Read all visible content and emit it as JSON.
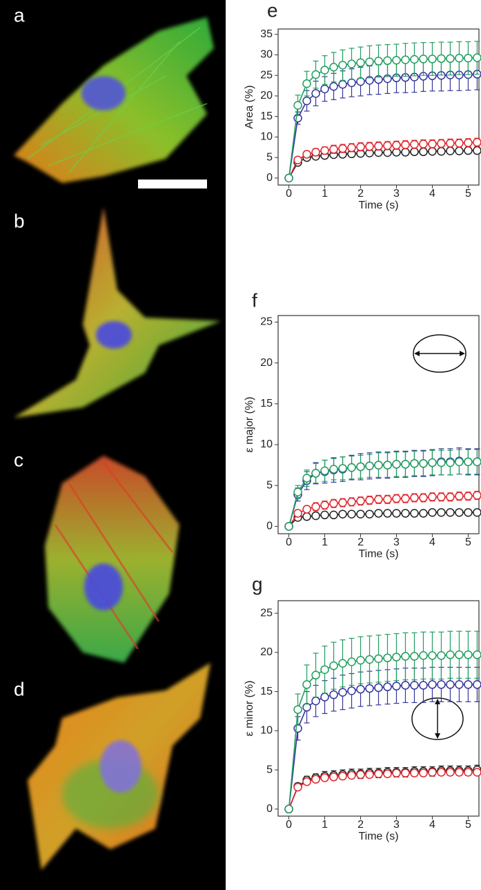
{
  "panel_labels": [
    "a",
    "b",
    "c",
    "d"
  ],
  "chart_data": [
    {
      "type": "line",
      "panel": "e",
      "ylabel": "Area (%)",
      "xlabel": "Time (s)",
      "x": [
        0,
        0.25,
        0.5,
        0.75,
        1,
        1.25,
        1.5,
        1.75,
        2,
        2.25,
        2.5,
        2.75,
        3,
        3.25,
        3.5,
        3.75,
        4,
        4.25,
        4.5,
        4.75,
        5,
        5.25
      ],
      "xlim": [
        -0.3,
        5.3
      ],
      "xticks": [
        0,
        1,
        2,
        3,
        4,
        5
      ],
      "ylim": [
        -1.7,
        36.3
      ],
      "yticks": [
        0,
        5,
        10,
        15,
        20,
        25,
        30,
        35
      ],
      "series": [
        {
          "color": "#222222",
          "values": [
            0,
            3.8,
            5,
            5.3,
            5.5,
            5.7,
            5.8,
            5.9,
            6,
            6.1,
            6.2,
            6.2,
            6.3,
            6.3,
            6.4,
            6.4,
            6.5,
            6.5,
            6.6,
            6.6,
            6.7,
            6.7
          ],
          "errors": [
            0,
            0.5,
            0.6,
            0.7,
            0.7,
            0.7,
            0.7,
            0.7,
            0.7,
            0.7,
            0.7,
            0.7,
            0.7,
            0.7,
            0.7,
            0.7,
            0.7,
            0.7,
            0.7,
            0.7,
            0.7,
            0.7
          ]
        },
        {
          "color": "#e0242b",
          "values": [
            0,
            4.4,
            5.8,
            6.3,
            6.7,
            7,
            7.2,
            7.4,
            7.6,
            7.7,
            7.8,
            7.9,
            8,
            8.1,
            8.2,
            8.3,
            8.3,
            8.4,
            8.5,
            8.5,
            8.6,
            8.7
          ],
          "errors": [
            0,
            0.5,
            0.8,
            0.9,
            0.9,
            1,
            1,
            1,
            1,
            1,
            1,
            1,
            1,
            1,
            1,
            1,
            1,
            1,
            1,
            1,
            1,
            1
          ]
        },
        {
          "color": "#33359a",
          "values": [
            0,
            14.6,
            18.8,
            20.6,
            21.7,
            22.3,
            22.8,
            23.2,
            23.5,
            23.8,
            24,
            24.2,
            24.4,
            24.5,
            24.6,
            24.8,
            24.9,
            25,
            25.1,
            25.1,
            25.2,
            25.3
          ],
          "errors": [
            0,
            1.5,
            2.5,
            3,
            3,
            3.2,
            3.3,
            3.4,
            3.5,
            3.5,
            3.6,
            3.6,
            3.6,
            3.7,
            3.7,
            3.7,
            3.7,
            3.8,
            3.8,
            3.8,
            3.8,
            3.8
          ]
        },
        {
          "color": "#1f9e5e",
          "values": [
            0,
            17.7,
            23,
            25.2,
            26.3,
            27,
            27.5,
            27.8,
            28.1,
            28.3,
            28.5,
            28.6,
            28.7,
            28.8,
            28.9,
            29,
            29,
            29.1,
            29.1,
            29.2,
            29.2,
            29.3
          ],
          "errors": [
            0,
            2.5,
            3,
            3.3,
            3.5,
            3.6,
            3.7,
            3.8,
            3.8,
            3.9,
            3.9,
            3.9,
            3.9,
            4,
            4,
            4,
            4,
            4,
            4,
            4,
            4,
            4
          ]
        }
      ]
    },
    {
      "type": "line",
      "panel": "f",
      "ylabel": "ε major (%)",
      "xlabel": "Time (s)",
      "x": [
        0,
        0.25,
        0.5,
        0.75,
        1,
        1.25,
        1.5,
        1.75,
        2,
        2.25,
        2.5,
        2.75,
        3,
        3.25,
        3.5,
        3.75,
        4,
        4.25,
        4.5,
        4.75,
        5,
        5.25
      ],
      "xlim": [
        -0.3,
        5.3
      ],
      "xticks": [
        0,
        1,
        2,
        3,
        4,
        5
      ],
      "ylim": [
        -0.9,
        25.8
      ],
      "yticks": [
        0,
        5,
        10,
        15,
        20,
        25
      ],
      "series": [
        {
          "color": "#222222",
          "values": [
            0,
            1.1,
            1.2,
            1.3,
            1.4,
            1.4,
            1.5,
            1.5,
            1.5,
            1.5,
            1.6,
            1.6,
            1.6,
            1.6,
            1.6,
            1.6,
            1.7,
            1.7,
            1.7,
            1.7,
            1.7,
            1.7
          ],
          "errors": [
            0,
            0.3,
            0.3,
            0.3,
            0.3,
            0.3,
            0.3,
            0.3,
            0.3,
            0.3,
            0.3,
            0.3,
            0.3,
            0.3,
            0.3,
            0.3,
            0.3,
            0.3,
            0.3,
            0.3,
            0.3,
            0.3
          ]
        },
        {
          "color": "#e0242b",
          "values": [
            0,
            1.6,
            2.1,
            2.4,
            2.6,
            2.8,
            2.9,
            3,
            3.1,
            3.2,
            3.3,
            3.3,
            3.4,
            3.4,
            3.5,
            3.5,
            3.6,
            3.6,
            3.6,
            3.7,
            3.7,
            3.8
          ],
          "errors": [
            0,
            0.4,
            0.4,
            0.5,
            0.5,
            0.5,
            0.5,
            0.5,
            0.5,
            0.5,
            0.5,
            0.5,
            0.5,
            0.5,
            0.5,
            0.5,
            0.5,
            0.5,
            0.5,
            0.5,
            0.5,
            0.5
          ]
        },
        {
          "color": "#33359a",
          "values": [
            0,
            3.9,
            5.6,
            6.5,
            6.7,
            6.9,
            7,
            7.2,
            7.3,
            7.4,
            7.5,
            7.5,
            7.6,
            7.6,
            7.7,
            7.7,
            7.8,
            7.9,
            7.9,
            8,
            7.9,
            7.9
          ],
          "errors": [
            0,
            0.8,
            1.1,
            1.3,
            1.4,
            1.5,
            1.5,
            1.5,
            1.6,
            1.6,
            1.6,
            1.6,
            1.6,
            1.6,
            1.6,
            1.6,
            1.6,
            1.6,
            1.6,
            1.6,
            1.6,
            1.6
          ]
        },
        {
          "color": "#1f9e5e",
          "values": [
            0,
            4.2,
            5.9,
            6.5,
            6.8,
            7,
            7.1,
            7.2,
            7.3,
            7.4,
            7.5,
            7.5,
            7.6,
            7.6,
            7.7,
            7.7,
            7.8,
            7.8,
            7.8,
            7.9,
            7.9,
            7.9
          ],
          "errors": [
            0,
            0.8,
            1,
            1.2,
            1.3,
            1.3,
            1.4,
            1.4,
            1.4,
            1.4,
            1.5,
            1.5,
            1.5,
            1.5,
            1.5,
            1.5,
            1.5,
            1.5,
            1.5,
            1.5,
            1.5,
            1.5
          ]
        }
      ]
    },
    {
      "type": "line",
      "panel": "g",
      "ylabel": "ε minor (%)",
      "xlabel": "Time (s)",
      "x": [
        0,
        0.25,
        0.5,
        0.75,
        1,
        1.25,
        1.5,
        1.75,
        2,
        2.25,
        2.5,
        2.75,
        3,
        3.25,
        3.5,
        3.75,
        4,
        4.25,
        4.5,
        4.75,
        5,
        5.25
      ],
      "xlim": [
        -0.3,
        5.3
      ],
      "xticks": [
        0,
        1,
        2,
        3,
        4,
        5
      ],
      "ylim": [
        -0.9,
        26.6
      ],
      "yticks": [
        0,
        5,
        10,
        15,
        20,
        25
      ],
      "series": [
        {
          "color": "#222222",
          "values": [
            0,
            2.9,
            3.7,
            4,
            4.2,
            4.3,
            4.4,
            4.5,
            4.5,
            4.6,
            4.6,
            4.7,
            4.7,
            4.7,
            4.8,
            4.8,
            4.8,
            4.9,
            4.9,
            4.9,
            4.9,
            5
          ],
          "errors": [
            0,
            0.4,
            0.5,
            0.5,
            0.6,
            0.6,
            0.6,
            0.6,
            0.6,
            0.6,
            0.6,
            0.6,
            0.6,
            0.6,
            0.6,
            0.6,
            0.6,
            0.6,
            0.6,
            0.6,
            0.6,
            0.6
          ]
        },
        {
          "color": "#e0242b",
          "values": [
            0,
            2.8,
            3.5,
            3.8,
            4,
            4.1,
            4.2,
            4.3,
            4.4,
            4.4,
            4.5,
            4.5,
            4.6,
            4.6,
            4.6,
            4.6,
            4.7,
            4.7,
            4.7,
            4.7,
            4.7,
            4.7
          ],
          "errors": [
            0,
            0.3,
            0.4,
            0.4,
            0.4,
            0.4,
            0.4,
            0.4,
            0.4,
            0.4,
            0.4,
            0.4,
            0.4,
            0.4,
            0.4,
            0.4,
            0.4,
            0.4,
            0.4,
            0.4,
            0.4,
            0.4
          ]
        },
        {
          "color": "#33359a",
          "values": [
            0,
            10.3,
            13,
            13.8,
            14.3,
            14.6,
            14.9,
            15.1,
            15.3,
            15.4,
            15.5,
            15.6,
            15.7,
            15.8,
            15.8,
            15.8,
            15.9,
            15.9,
            15.9,
            15.9,
            15.9,
            15.9
          ],
          "errors": [
            0,
            1.5,
            2,
            2,
            2.1,
            2.1,
            2.2,
            2.2,
            2.2,
            2.2,
            2.2,
            2.2,
            2.2,
            2.2,
            2.2,
            2.2,
            2.2,
            2.2,
            2.2,
            2.2,
            2.2,
            2.2
          ]
        },
        {
          "color": "#1f9e5e",
          "values": [
            0,
            12.7,
            15.9,
            17.1,
            17.8,
            18.3,
            18.6,
            18.8,
            19,
            19.1,
            19.2,
            19.3,
            19.4,
            19.5,
            19.5,
            19.6,
            19.6,
            19.6,
            19.7,
            19.7,
            19.7,
            19.7
          ],
          "errors": [
            0,
            2,
            2.5,
            2.8,
            3,
            3,
            3,
            3,
            3,
            3,
            3,
            3,
            3,
            3,
            3,
            3,
            3,
            3,
            3,
            3,
            3,
            3
          ]
        }
      ]
    }
  ]
}
